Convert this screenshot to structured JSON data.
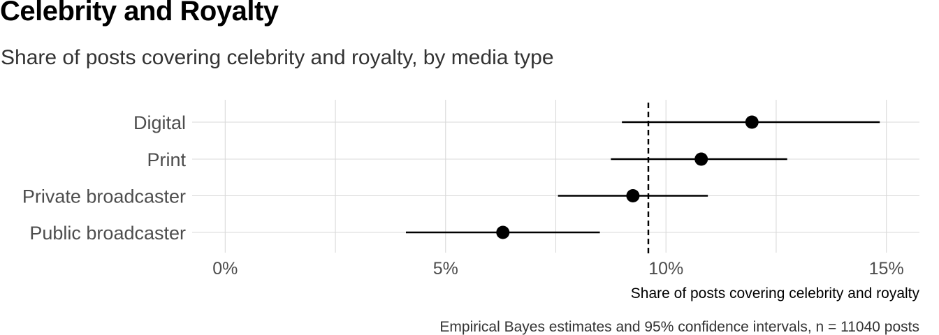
{
  "title": "Celebrity and Royalty",
  "subtitle": "Share of posts covering celebrity and royalty, by media type",
  "caption": "Empirical Bayes estimates and 95% confidence intervals, n = 11040 posts",
  "chart_data": {
    "type": "scatter",
    "title": "Celebrity and Royalty",
    "subtitle": "Share of posts covering celebrity and royalty, by media type",
    "xlabel": "Share of posts covering celebrity and royalty",
    "ylabel": "",
    "xlim": [
      -0.75,
      15.75
    ],
    "x_ticks": [
      0,
      5,
      10,
      15
    ],
    "x_tick_labels": [
      "0%",
      "5%",
      "10%",
      "15%"
    ],
    "categories": [
      "Digital",
      "Print",
      "Private broadcaster",
      "Public broadcaster"
    ],
    "values": [
      11.95,
      10.8,
      9.25,
      6.3
    ],
    "ci_low": [
      9.0,
      8.75,
      7.55,
      4.1
    ],
    "ci_high": [
      14.85,
      12.75,
      10.95,
      8.5
    ],
    "reference_line": 9.6,
    "grid": true,
    "legend": "none"
  },
  "colors": {
    "grid": "#d9d9d9",
    "marks": "#000000",
    "tick_label": "#4d4d4d"
  }
}
